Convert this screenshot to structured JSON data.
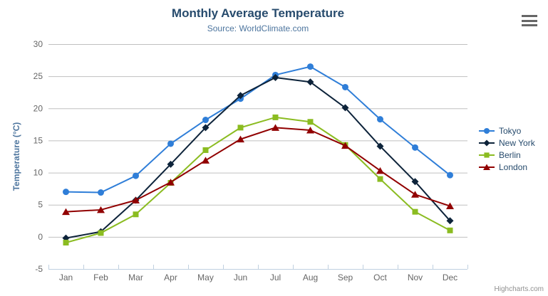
{
  "chart_data": {
    "type": "line",
    "title": "Monthly Average Temperature",
    "subtitle": "Source: WorldClimate.com",
    "xlabel": "",
    "ylabel": "Temperature (°C)",
    "categories": [
      "Jan",
      "Feb",
      "Mar",
      "Apr",
      "May",
      "Jun",
      "Jul",
      "Aug",
      "Sep",
      "Oct",
      "Nov",
      "Dec"
    ],
    "yticks": [
      -5,
      0,
      5,
      10,
      15,
      20,
      25,
      30
    ],
    "ylim": [
      -5,
      30
    ],
    "grid": "horizontal-only",
    "legend_position": "right",
    "series": [
      {
        "name": "Tokyo",
        "color": "#2f7ed8",
        "marker": "circle",
        "values": [
          7.0,
          6.9,
          9.5,
          14.5,
          18.2,
          21.5,
          25.2,
          26.5,
          23.3,
          18.3,
          13.9,
          9.6
        ]
      },
      {
        "name": "New York",
        "color": "#0d233a",
        "marker": "diamond",
        "values": [
          -0.2,
          0.8,
          5.7,
          11.3,
          17.0,
          22.0,
          24.8,
          24.1,
          20.1,
          14.1,
          8.6,
          2.5
        ]
      },
      {
        "name": "Berlin",
        "color": "#8bbc21",
        "marker": "square",
        "values": [
          -0.9,
          0.6,
          3.5,
          8.4,
          13.5,
          17.0,
          18.6,
          17.9,
          14.3,
          9.0,
          3.9,
          1.0
        ]
      },
      {
        "name": "London",
        "color": "#910000",
        "marker": "triangle",
        "values": [
          3.9,
          4.2,
          5.7,
          8.5,
          11.9,
          15.2,
          17.0,
          16.6,
          14.2,
          10.3,
          6.6,
          4.8
        ]
      }
    ]
  },
  "theme": {
    "title_color": "#274b6d",
    "subtitle_color": "#4d759e",
    "axis_title_color": "#4d759e",
    "axis_label_color": "#666666",
    "grid_color": "#c0c0c0",
    "axis_line_color": "#c0d0e0",
    "legend_text_color": "#274b6d",
    "credits_color": "#909090",
    "menu_icon_color": "#666666",
    "background": "#ffffff"
  },
  "header": {
    "menu_icon": "hamburger-menu-icon"
  },
  "credits": {
    "label": "Highcharts.com"
  }
}
